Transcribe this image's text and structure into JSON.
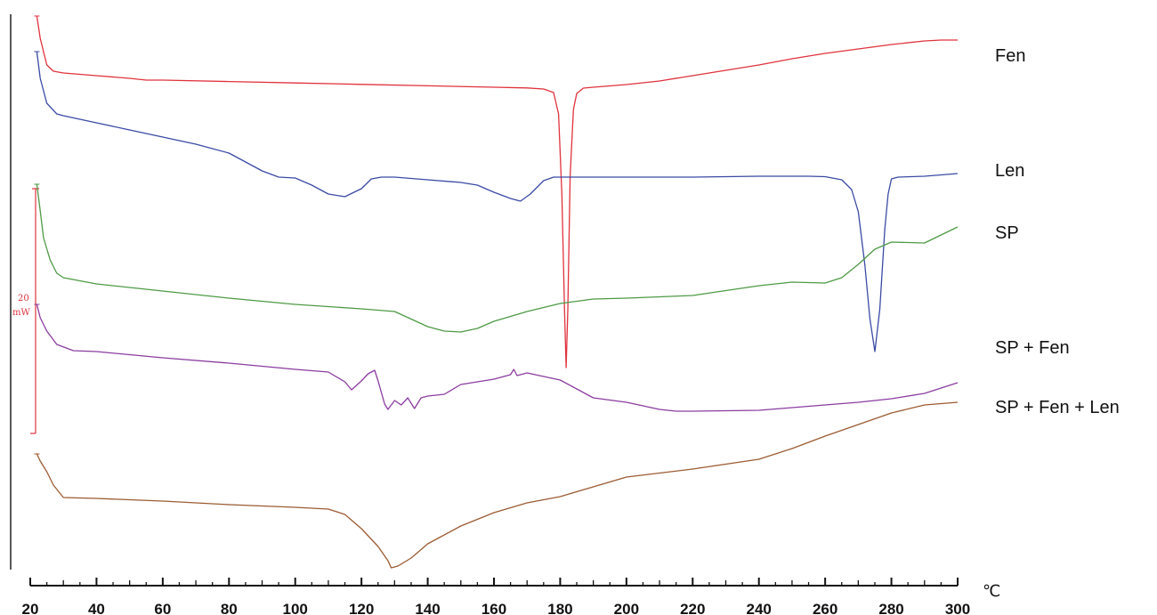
{
  "chart_data": {
    "type": "line",
    "x_unit": "℃",
    "xlim": [
      20,
      300
    ],
    "x_ticks": [
      20,
      40,
      60,
      80,
      100,
      120,
      140,
      160,
      180,
      200,
      220,
      240,
      260,
      280,
      300
    ],
    "scale_bar": {
      "value": "20",
      "unit": "mW"
    },
    "series": [
      {
        "name": "Fen",
        "color": "#e0323c",
        "points": [
          [
            22,
            0
          ],
          [
            23,
            -25
          ],
          [
            25,
            -55
          ],
          [
            27,
            -62
          ],
          [
            30,
            -64
          ],
          [
            40,
            -67
          ],
          [
            50,
            -70
          ],
          [
            55,
            -72
          ],
          [
            60,
            -72
          ],
          [
            80,
            -73.6
          ],
          [
            100,
            -75.2
          ],
          [
            120,
            -76.8
          ],
          [
            140,
            -78.4
          ],
          [
            160,
            -80
          ],
          [
            170,
            -80.8
          ],
          [
            175,
            -82
          ],
          [
            178,
            -86
          ],
          [
            179.5,
            -110
          ],
          [
            180.5,
            -200
          ],
          [
            181.3,
            -330
          ],
          [
            181.8,
            -395
          ],
          [
            182.3,
            -330
          ],
          [
            183,
            -180
          ],
          [
            184,
            -105
          ],
          [
            185,
            -87
          ],
          [
            187,
            -81
          ],
          [
            190,
            -80
          ],
          [
            200,
            -77
          ],
          [
            210,
            -73
          ],
          [
            220,
            -67
          ],
          [
            230,
            -61
          ],
          [
            240,
            -55
          ],
          [
            250,
            -48
          ],
          [
            260,
            -42
          ],
          [
            270,
            -37
          ],
          [
            280,
            -32
          ],
          [
            290,
            -28
          ],
          [
            295,
            -27
          ],
          [
            300,
            -27
          ]
        ]
      },
      {
        "name": "Len",
        "color": "#3a4aa5",
        "points": [
          [
            22,
            0
          ],
          [
            23,
            -30
          ],
          [
            25,
            -58
          ],
          [
            28,
            -70
          ],
          [
            30,
            -72
          ],
          [
            40,
            -80
          ],
          [
            50,
            -88
          ],
          [
            60,
            -96
          ],
          [
            70,
            -104
          ],
          [
            80,
            -114
          ],
          [
            85,
            -124
          ],
          [
            90,
            -134
          ],
          [
            95,
            -141
          ],
          [
            100,
            -142
          ],
          [
            105,
            -150
          ],
          [
            110,
            -160
          ],
          [
            115,
            -163
          ],
          [
            120,
            -154
          ],
          [
            123,
            -143
          ],
          [
            126,
            -141
          ],
          [
            130,
            -141
          ],
          [
            140,
            -144
          ],
          [
            150,
            -147
          ],
          [
            155,
            -150
          ],
          [
            160,
            -158
          ],
          [
            165,
            -165
          ],
          [
            168,
            -168
          ],
          [
            171,
            -160
          ],
          [
            175,
            -145
          ],
          [
            178,
            -141
          ],
          [
            200,
            -141
          ],
          [
            220,
            -141
          ],
          [
            240,
            -140
          ],
          [
            255,
            -140
          ],
          [
            260,
            -140.5
          ],
          [
            265,
            -144
          ],
          [
            268,
            -155
          ],
          [
            270,
            -180
          ],
          [
            272,
            -240
          ],
          [
            273.5,
            -300
          ],
          [
            275,
            -337
          ],
          [
            276.5,
            -290
          ],
          [
            278,
            -200
          ],
          [
            279,
            -160
          ],
          [
            280,
            -143
          ],
          [
            282,
            -141
          ],
          [
            290,
            -140
          ],
          [
            300,
            -137
          ]
        ]
      },
      {
        "name": "SP",
        "color": "#4e9a45",
        "points": [
          [
            22,
            0
          ],
          [
            23,
            -30
          ],
          [
            24,
            -60
          ],
          [
            26,
            -85
          ],
          [
            28,
            -100
          ],
          [
            30,
            -105
          ],
          [
            40,
            -112
          ],
          [
            60,
            -120
          ],
          [
            80,
            -128
          ],
          [
            100,
            -135
          ],
          [
            120,
            -140
          ],
          [
            130,
            -143
          ],
          [
            140,
            -160
          ],
          [
            145,
            -165
          ],
          [
            150,
            -166
          ],
          [
            155,
            -162
          ],
          [
            160,
            -154
          ],
          [
            170,
            -143
          ],
          [
            180,
            -134
          ],
          [
            190,
            -129
          ],
          [
            200,
            -128
          ],
          [
            220,
            -125
          ],
          [
            240,
            -114
          ],
          [
            250,
            -110
          ],
          [
            260,
            -111
          ],
          [
            265,
            -105
          ],
          [
            270,
            -90
          ],
          [
            275,
            -73
          ],
          [
            280,
            -65
          ],
          [
            290,
            -66
          ],
          [
            295,
            -57
          ],
          [
            300,
            -48
          ]
        ]
      },
      {
        "name": "SP + Fen",
        "color": "#8b3ca0",
        "points": [
          [
            22,
            0
          ],
          [
            23,
            -15
          ],
          [
            25,
            -30
          ],
          [
            28,
            -45
          ],
          [
            33,
            -52
          ],
          [
            40,
            -53
          ],
          [
            60,
            -60
          ],
          [
            80,
            -66
          ],
          [
            100,
            -73
          ],
          [
            110,
            -76
          ],
          [
            115,
            -87
          ],
          [
            117,
            -96
          ],
          [
            120,
            -86
          ],
          [
            122,
            -78
          ],
          [
            124,
            -74
          ],
          [
            125,
            -86
          ],
          [
            127,
            -112
          ],
          [
            128,
            -118
          ],
          [
            130,
            -108
          ],
          [
            132,
            -113
          ],
          [
            134,
            -105
          ],
          [
            136,
            -117
          ],
          [
            138,
            -105
          ],
          [
            140,
            -103
          ],
          [
            145,
            -101
          ],
          [
            150,
            -90
          ],
          [
            160,
            -84
          ],
          [
            165,
            -79
          ],
          [
            166,
            -73
          ],
          [
            167,
            -80
          ],
          [
            170,
            -77
          ],
          [
            180,
            -85
          ],
          [
            190,
            -105
          ],
          [
            200,
            -110
          ],
          [
            210,
            -118
          ],
          [
            215,
            -120
          ],
          [
            220,
            -120
          ],
          [
            240,
            -119
          ],
          [
            250,
            -116
          ],
          [
            260,
            -113
          ],
          [
            270,
            -110
          ],
          [
            280,
            -106
          ],
          [
            290,
            -100
          ],
          [
            300,
            -88
          ]
        ]
      },
      {
        "name": "SP + Fen + Len",
        "color": "#9c5a32",
        "points": [
          [
            22,
            0
          ],
          [
            23,
            -8
          ],
          [
            25,
            -20
          ],
          [
            27,
            -35
          ],
          [
            30,
            -49
          ],
          [
            40,
            -50
          ],
          [
            60,
            -53
          ],
          [
            80,
            -57
          ],
          [
            100,
            -60
          ],
          [
            110,
            -62
          ],
          [
            115,
            -68
          ],
          [
            120,
            -84
          ],
          [
            125,
            -104
          ],
          [
            128,
            -120
          ],
          [
            129,
            -128
          ],
          [
            131,
            -126
          ],
          [
            135,
            -117
          ],
          [
            140,
            -101
          ],
          [
            150,
            -81
          ],
          [
            160,
            -66
          ],
          [
            170,
            -55
          ],
          [
            180,
            -48
          ],
          [
            200,
            -26
          ],
          [
            220,
            -17
          ],
          [
            240,
            -6
          ],
          [
            250,
            6
          ],
          [
            260,
            20
          ],
          [
            270,
            33
          ],
          [
            280,
            46
          ],
          [
            290,
            55
          ],
          [
            300,
            58
          ]
        ]
      }
    ]
  }
}
